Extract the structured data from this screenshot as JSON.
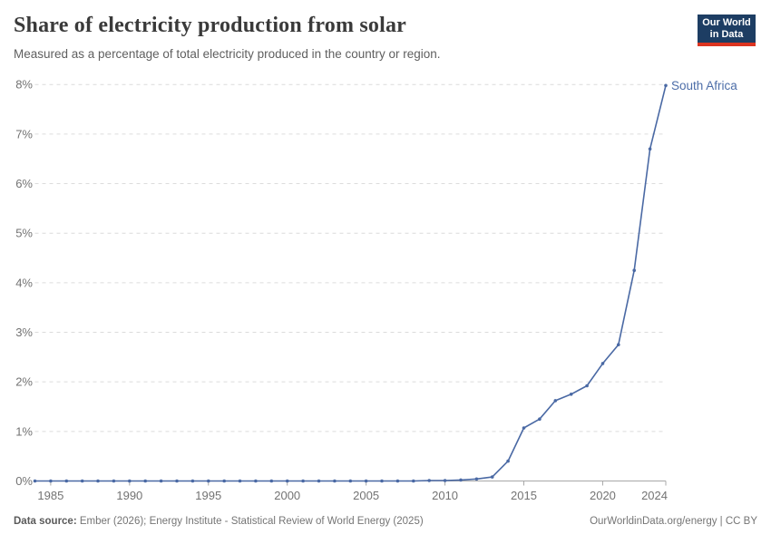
{
  "header": {
    "title": "Share of electricity production from solar",
    "subtitle": "Measured as a percentage of total electricity produced in the country or region."
  },
  "logo": {
    "line1": "Our World",
    "line2": "in Data"
  },
  "chart_data": {
    "type": "line",
    "title": "Share of electricity production from solar",
    "xlabel": "",
    "ylabel": "",
    "xlim": [
      1984,
      2024
    ],
    "ylim": [
      0,
      8
    ],
    "x_ticks": [
      1985,
      1990,
      1995,
      2000,
      2005,
      2010,
      2015,
      2020,
      2024
    ],
    "y_ticks": [
      0,
      1,
      2,
      3,
      4,
      5,
      6,
      7,
      8
    ],
    "y_tick_suffix": "%",
    "grid": "horizontal-dashed",
    "series": [
      {
        "name": "South Africa",
        "color": "#4a69a4",
        "label_color": "#4c6da8",
        "x": [
          1984,
          1985,
          1986,
          1987,
          1988,
          1989,
          1990,
          1991,
          1992,
          1993,
          1994,
          1995,
          1996,
          1997,
          1998,
          1999,
          2000,
          2001,
          2002,
          2003,
          2004,
          2005,
          2006,
          2007,
          2008,
          2009,
          2010,
          2011,
          2012,
          2013,
          2014,
          2015,
          2016,
          2017,
          2018,
          2019,
          2020,
          2021,
          2022,
          2023,
          2024
        ],
        "values": [
          0,
          0,
          0,
          0,
          0,
          0,
          0,
          0,
          0,
          0,
          0,
          0,
          0,
          0,
          0,
          0,
          0,
          0,
          0,
          0,
          0,
          0,
          0,
          0,
          0,
          0.01,
          0.01,
          0.02,
          0.04,
          0.08,
          0.4,
          1.07,
          1.25,
          1.62,
          1.75,
          1.92,
          2.37,
          2.75,
          4.25,
          6.7,
          7.98
        ]
      }
    ],
    "end_label": "South Africa"
  },
  "footer": {
    "source_label": "Data source:",
    "source_text": " Ember (2026); Energy Institute - Statistical Review of World Energy (2025)",
    "link": "OurWorldinData.org/energy | CC BY"
  },
  "colors": {
    "line": "#4a69a4",
    "grid": "#dcdcdc",
    "axis": "#a8a8a8",
    "axis_label": "#737373",
    "title": "#3a3a3a",
    "subtitle": "#5f5f5f",
    "logo_bg": "#1d3d63",
    "logo_stripe": "#dc3420"
  }
}
